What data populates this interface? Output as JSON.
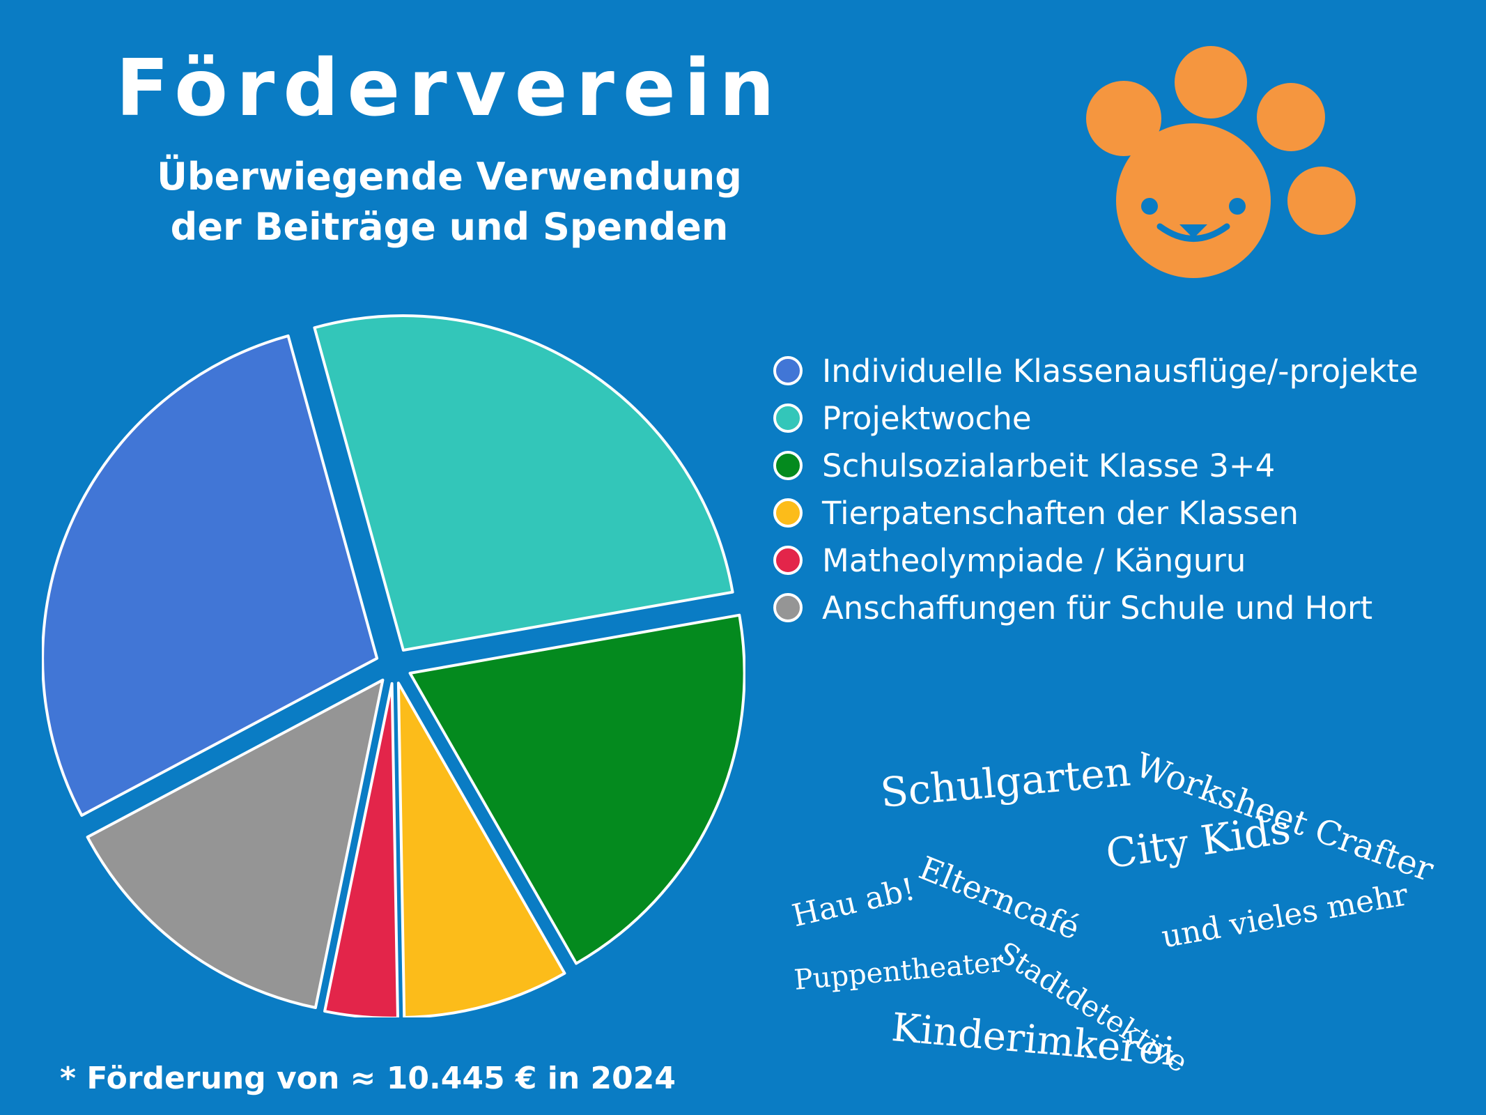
{
  "header": {
    "title": "Förderverein",
    "subtitle_line1": "Überwiegende Verwendung",
    "subtitle_line2": "der Beiträge und Spenden"
  },
  "logo": {
    "icon": "paw-face-icon",
    "color": "#f5963f"
  },
  "chart_data": {
    "type": "pie",
    "title": "",
    "series": [
      {
        "name": "Individuelle Klassenausflüge/-projekte",
        "value": 28.5,
        "color": "#4176d6"
      },
      {
        "name": "Projektwoche",
        "value": 26.5,
        "color": "#33c6b9"
      },
      {
        "name": "Schulsozialarbeit Klasse 3+4",
        "value": 19.5,
        "color": "#048a1e"
      },
      {
        "name": "Tierpatenschaften der Klassen",
        "value": 8,
        "color": "#fcbc1a"
      },
      {
        "name": "Matheolympiade / Känguru",
        "value": 3.5,
        "color": "#e3254a"
      },
      {
        "name": "Anschaffungen für Schule und Hort",
        "value": 14,
        "color": "#959595"
      }
    ],
    "legend_position": "right",
    "exploded": true
  },
  "word_cloud": [
    "Schulgarten",
    "Worksheet Crafter",
    "City Kids",
    "Elterncafé",
    "Hau ab!",
    "Stadtdetektive",
    "und vieles mehr",
    "Puppentheater",
    "Kinderimkerei"
  ],
  "footnote": "* Förderung von ≈ 10.445 € in 2024"
}
